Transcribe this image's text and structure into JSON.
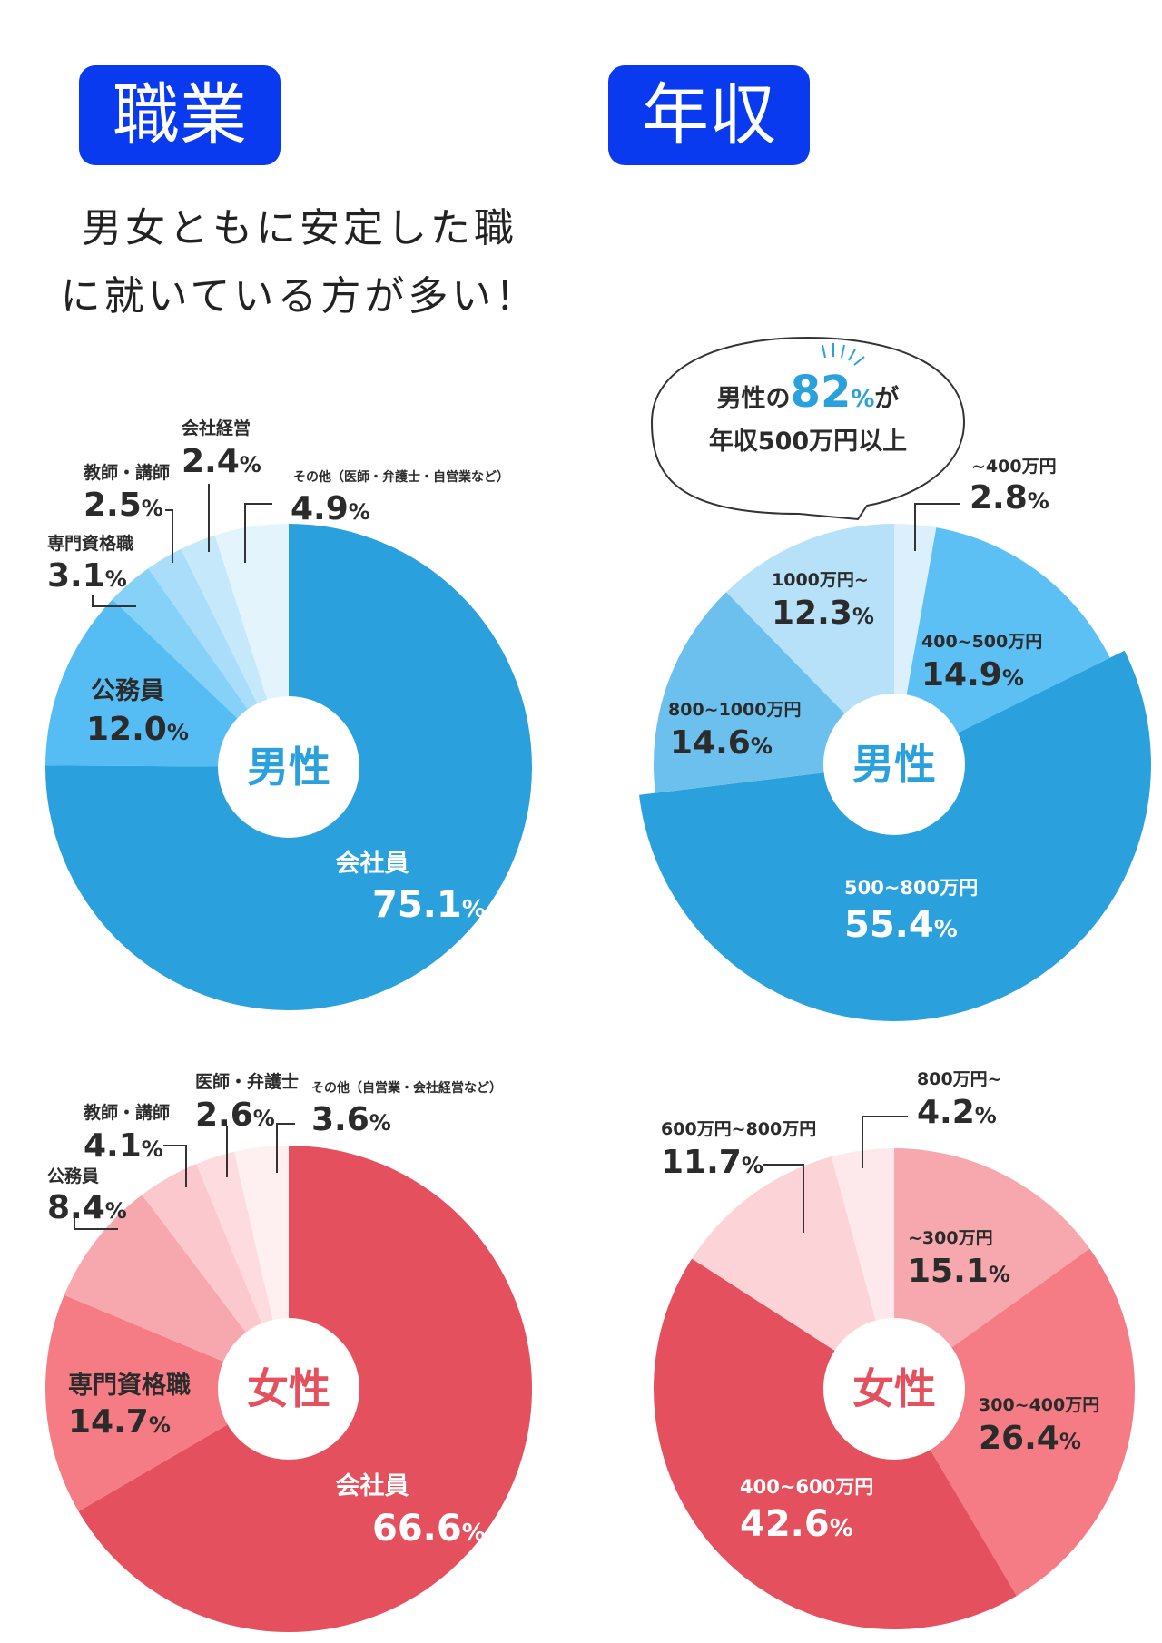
{
  "headers": {
    "job": "職業",
    "income": "年収"
  },
  "subtitle": {
    "line1": "男女ともに安定した職",
    "line2": "に就いている方が多い！"
  },
  "bubble": {
    "line1_prefix": "男性の",
    "line1_number": "82",
    "line1_percent": "%",
    "line1_suffix": "が",
    "line2": "年収500万円以上"
  },
  "colors": {
    "male_job": [
      "#2aa0dc",
      "#55bdf3",
      "#86d1f8",
      "#a9ddf9",
      "#c6e8fb",
      "#e4f4fd"
    ],
    "male_income": [
      "#dbeffc",
      "#5cc0f5",
      "#2aa0dc",
      "#6cc0ee",
      "#b6e1f8"
    ],
    "female_job": [
      "#e5505f",
      "#f57c84",
      "#f6a8ae",
      "#fbc9cd",
      "#fddbde",
      "#fef0f1"
    ],
    "female_income": [
      "#f7a8ae",
      "#f57c84",
      "#e5505f",
      "#fcd3d6",
      "#fde9eb"
    ],
    "male_text": "#2aa0dc",
    "female_text": "#e5505f"
  },
  "chart_data": [
    {
      "type": "pie",
      "center_label": "男性",
      "labels": [
        "会社員",
        "公務員",
        "専門資格職",
        "教師・講師",
        "会社経営",
        "その他（医師・弁護士・自営業など）"
      ],
      "values": [
        75.1,
        12.0,
        3.1,
        2.5,
        2.4,
        4.9
      ],
      "value_text": [
        "75.1",
        "12.0",
        "3.1",
        "2.5",
        "2.4",
        "4.9"
      ]
    },
    {
      "type": "pie",
      "center_label": "男性",
      "labels": [
        "~400万円",
        "400~500万円",
        "500~800万円",
        "800~1000万円",
        "1000万円~"
      ],
      "values": [
        2.8,
        14.9,
        55.4,
        14.6,
        12.3
      ],
      "value_text": [
        "2.8",
        "14.9",
        "55.4",
        "14.6",
        "12.3"
      ]
    },
    {
      "type": "pie",
      "center_label": "女性",
      "labels": [
        "会社員",
        "専門資格職",
        "公務員",
        "教師・講師",
        "医師・弁護士",
        "その他（自営業・会社経営など）"
      ],
      "values": [
        66.6,
        14.7,
        8.4,
        4.1,
        2.6,
        3.6
      ],
      "value_text": [
        "66.6",
        "14.7",
        "8.4",
        "4.1",
        "2.6",
        "3.6"
      ]
    },
    {
      "type": "pie",
      "center_label": "女性",
      "labels": [
        "~300万円",
        "300~400万円",
        "400~600万円",
        "600万円~800万円",
        "800万円~"
      ],
      "values": [
        15.1,
        26.4,
        42.6,
        11.7,
        4.2
      ],
      "value_text": [
        "15.1",
        "26.4",
        "42.6",
        "11.7",
        "4.2"
      ]
    }
  ]
}
